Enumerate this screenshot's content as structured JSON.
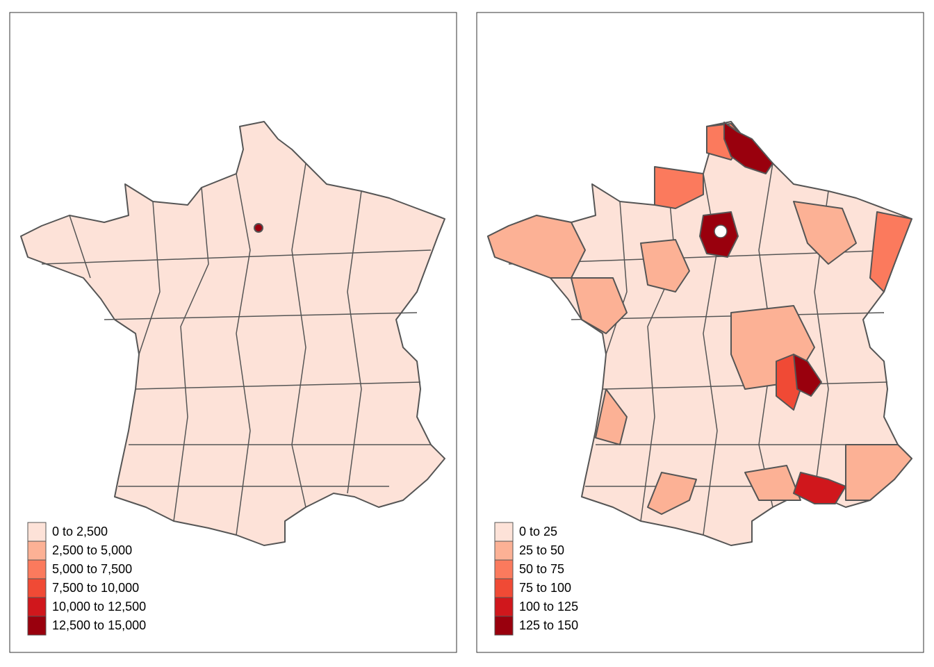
{
  "panels": [
    {
      "legend": [
        {
          "label": "0 to 2,500",
          "color": "#fde2d8"
        },
        {
          "label": "2,500 to 5,000",
          "color": "#fcb195"
        },
        {
          "label": "5,000 to 7,500",
          "color": "#fb7a5d"
        },
        {
          "label": "7,500 to 10,000",
          "color": "#f04a35"
        },
        {
          "label": "10,000 to 12,500",
          "color": "#d0171c"
        },
        {
          "label": "12,500 to 15,000",
          "color": "#99000d"
        }
      ]
    },
    {
      "legend": [
        {
          "label": "0 to 25",
          "color": "#fde2d8"
        },
        {
          "label": "25 to 50",
          "color": "#fcb195"
        },
        {
          "label": "50 to 75",
          "color": "#fb7a5d"
        },
        {
          "label": "75 to 100",
          "color": "#f04a35"
        },
        {
          "label": "100 to 125",
          "color": "#d0171c"
        },
        {
          "label": "125 to 150",
          "color": "#99000d"
        }
      ]
    }
  ]
}
